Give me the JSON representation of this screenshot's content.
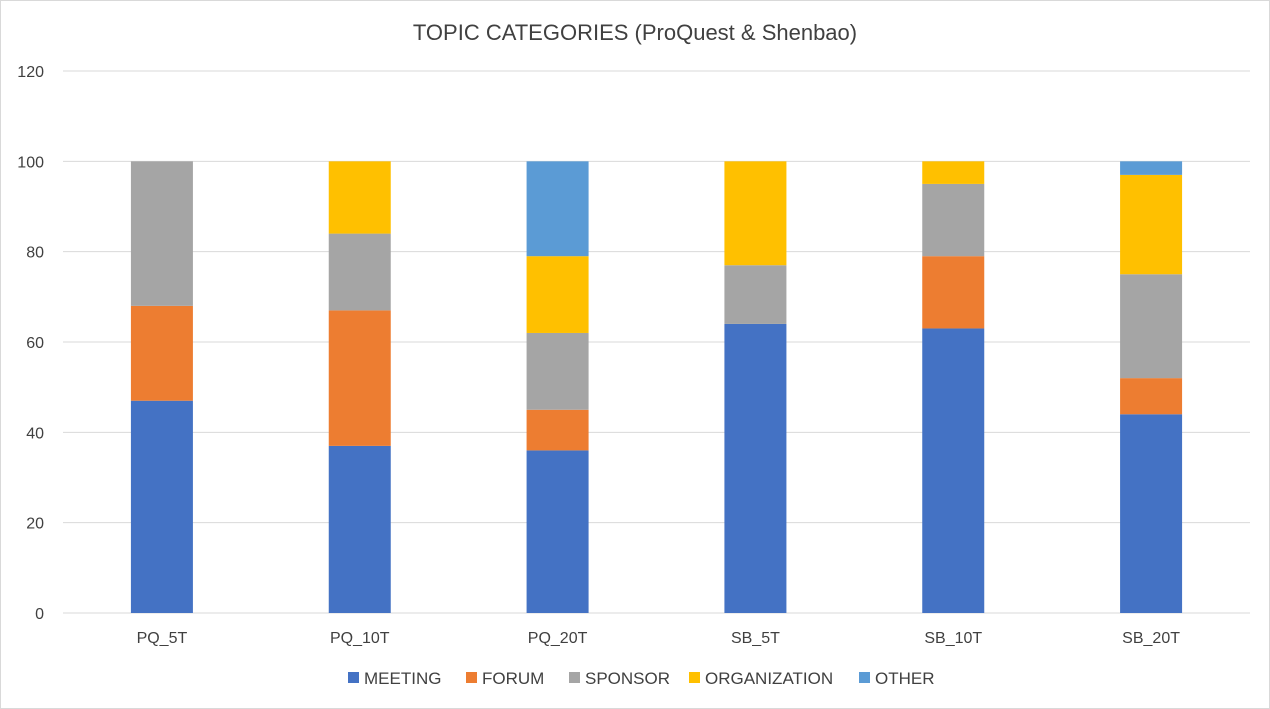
{
  "chart_data": {
    "type": "bar",
    "stacked": true,
    "title": "TOPIC CATEGORIES (ProQuest & Shenbao)",
    "xlabel": "",
    "ylabel": "",
    "ylim": [
      0,
      120
    ],
    "yticks": [
      0,
      20,
      40,
      60,
      80,
      100,
      120
    ],
    "grid": true,
    "legend_position": "bottom",
    "categories": [
      "PQ_5T",
      "PQ_10T",
      "PQ_20T",
      "SB_5T",
      "SB_10T",
      "SB_20T"
    ],
    "series": [
      {
        "name": "MEETING",
        "color": "#4472C4",
        "values": [
          47,
          37,
          36,
          64,
          63,
          44
        ]
      },
      {
        "name": "FORUM",
        "color": "#ED7D31",
        "values": [
          21,
          30,
          9,
          0,
          16,
          8
        ]
      },
      {
        "name": "SPONSOR",
        "color": "#A5A5A5",
        "values": [
          32,
          17,
          17,
          13,
          16,
          23
        ]
      },
      {
        "name": "ORGANIZATION",
        "color": "#FFC000",
        "values": [
          0,
          16,
          17,
          23,
          5,
          22
        ]
      },
      {
        "name": "OTHER",
        "color": "#5B9BD5",
        "values": [
          0,
          0,
          21,
          0,
          0,
          3
        ]
      }
    ]
  }
}
